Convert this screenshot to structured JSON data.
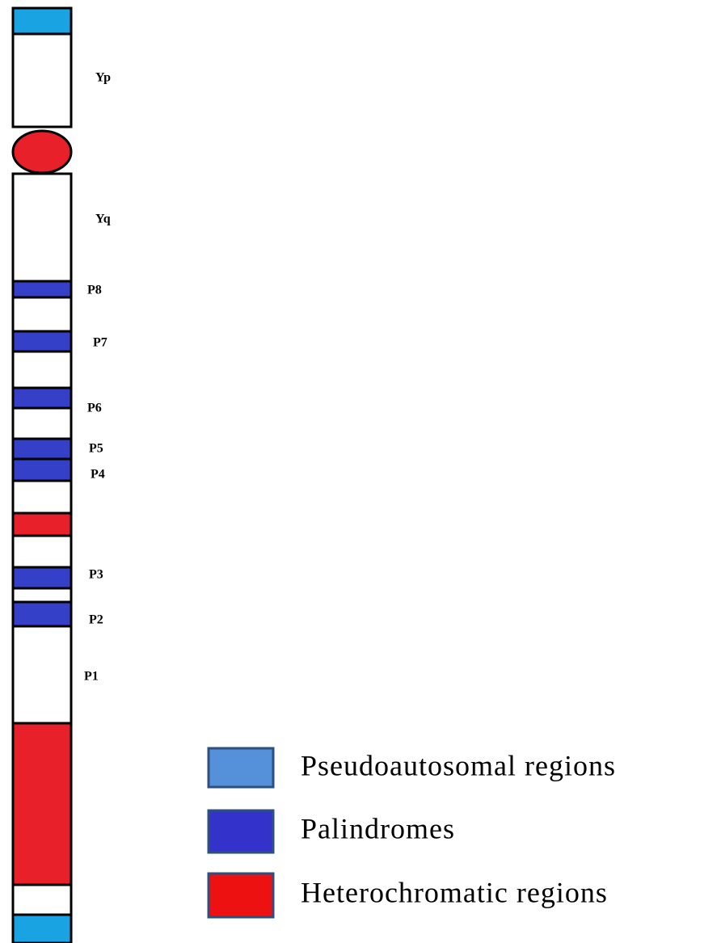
{
  "arm_labels": {
    "p": "Yp",
    "q": "Yq"
  },
  "palindromes": [
    "P8",
    "P7",
    "P6",
    "P5",
    "P4",
    "P3",
    "P2",
    "P1"
  ],
  "legend": [
    {
      "label": "Pseudoautosomal regions"
    },
    {
      "label": "Palindromes"
    },
    {
      "label": "Heterochromatic regions"
    }
  ]
}
